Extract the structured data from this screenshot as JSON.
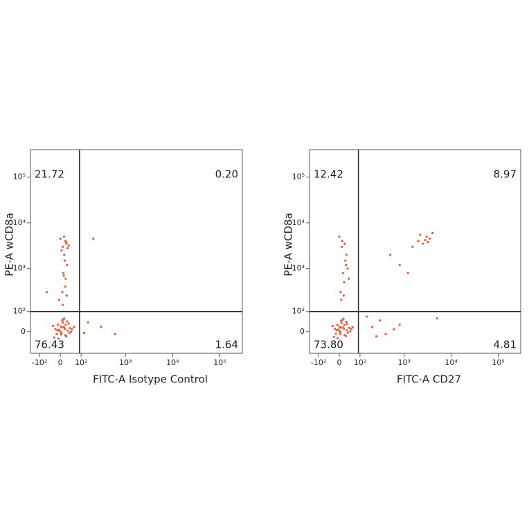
{
  "chart_data": [
    {
      "type": "scatter",
      "x_label": "FITC-A Isotype Control",
      "y_label": "PE-A wCD8a",
      "scale": "biexponential",
      "color": "#f05a3c",
      "xlim": [
        -170,
        300000
      ],
      "ylim": [
        -110,
        400000
      ],
      "xticks": [
        {
          "value": -100,
          "label": "-10²"
        },
        0,
        {
          "value": 100,
          "label": "10²"
        },
        {
          "value": 1000,
          "label": "10³"
        },
        {
          "value": 10000,
          "label": "10⁴"
        },
        {
          "value": 100000,
          "label": "10⁵"
        }
      ],
      "yticks": [
        0,
        {
          "value": 100,
          "label": "10²"
        },
        {
          "value": 1000,
          "label": "10³"
        },
        {
          "value": 10000,
          "label": "10⁴"
        },
        {
          "value": 100000,
          "label": "10⁵"
        }
      ],
      "gates": {
        "x": 90,
        "y": 100
      },
      "quadrants": {
        "values": [
          21.72,
          0.2,
          76.43,
          1.64
        ],
        "value_labels": [
          "21.72",
          "0.20",
          "76.43",
          "1.64"
        ]
      },
      "x": [
        -20,
        5,
        15,
        30,
        -10,
        0,
        20,
        40,
        -30,
        10,
        25,
        -5,
        35,
        8,
        -15,
        18,
        45,
        2,
        28,
        -25,
        12,
        50,
        -8,
        22,
        6,
        38,
        -12,
        16,
        60,
        3,
        10,
        20,
        5,
        25,
        15,
        30,
        0,
        18,
        12,
        22,
        8,
        28,
        16,
        35,
        20,
        -5,
        14,
        26,
        10,
        24,
        300,
        600,
        150,
        120,
        -60,
        200
      ],
      "values": [
        10,
        -5,
        20,
        5,
        30,
        0,
        -15,
        15,
        25,
        40,
        -20,
        8,
        35,
        50,
        -10,
        12,
        0,
        22,
        45,
        -25,
        55,
        10,
        -30,
        30,
        18,
        -5,
        5,
        60,
        20,
        -12,
        3000,
        4000,
        2500,
        3500,
        5000,
        2800,
        4500,
        1500,
        800,
        600,
        300,
        1200,
        2000,
        3200,
        400,
        200,
        700,
        250,
        150,
        3800,
        20,
        -10,
        40,
        -5,
        300,
        4500
      ]
    },
    {
      "type": "scatter",
      "x_label": "FITC-A CD27",
      "y_label": "PE-A wCD8a",
      "scale": "biexponential",
      "color": "#f05a3c",
      "xlim": [
        -170,
        300000
      ],
      "ylim": [
        -110,
        400000
      ],
      "xticks": [
        {
          "value": -100,
          "label": "-10²"
        },
        0,
        {
          "value": 100,
          "label": "10²"
        },
        {
          "value": 1000,
          "label": "10³"
        },
        {
          "value": 10000,
          "label": "10⁴"
        },
        {
          "value": 100000,
          "label": "10⁵"
        }
      ],
      "yticks": [
        0,
        {
          "value": 100,
          "label": "10²"
        },
        {
          "value": 1000,
          "label": "10³"
        },
        {
          "value": 10000,
          "label": "10⁴"
        },
        {
          "value": 100000,
          "label": "10⁵"
        }
      ],
      "gates": {
        "x": 90,
        "y": 100
      },
      "quadrants": {
        "values": [
          12.42,
          8.97,
          73.8,
          4.81
        ],
        "value_labels": [
          "12.42",
          "8.97",
          "73.80",
          "4.81"
        ]
      },
      "x": [
        -18,
        4,
        14,
        32,
        -8,
        2,
        22,
        42,
        -28,
        9,
        27,
        -4,
        33,
        7,
        -14,
        19,
        47,
        1,
        29,
        -22,
        13,
        52,
        -6,
        21,
        5,
        36,
        -11,
        17,
        58,
        4,
        5,
        15,
        25,
        10,
        30,
        20,
        0,
        12,
        35,
        8,
        22,
        18,
        40,
        28,
        2000,
        3000,
        2500,
        4000,
        3500,
        1500,
        2200,
        3200,
        500,
        800,
        1200,
        2800,
        200,
        400,
        300,
        600,
        150,
        250,
        800,
        5000
      ],
      "values": [
        12,
        -4,
        18,
        6,
        28,
        2,
        -14,
        16,
        24,
        38,
        -18,
        9,
        33,
        48,
        -9,
        13,
        1,
        21,
        43,
        -22,
        52,
        11,
        -28,
        29,
        17,
        -4,
        6,
        58,
        19,
        -10,
        300,
        800,
        1500,
        3000,
        2000,
        500,
        5000,
        4000,
        1000,
        200,
        3500,
        250,
        600,
        1200,
        4000,
        5000,
        3500,
        6000,
        4500,
        3000,
        5500,
        3800,
        2000,
        1200,
        800,
        4200,
        20,
        -10,
        50,
        10,
        70,
        -20,
        30,
        60
      ]
    }
  ]
}
